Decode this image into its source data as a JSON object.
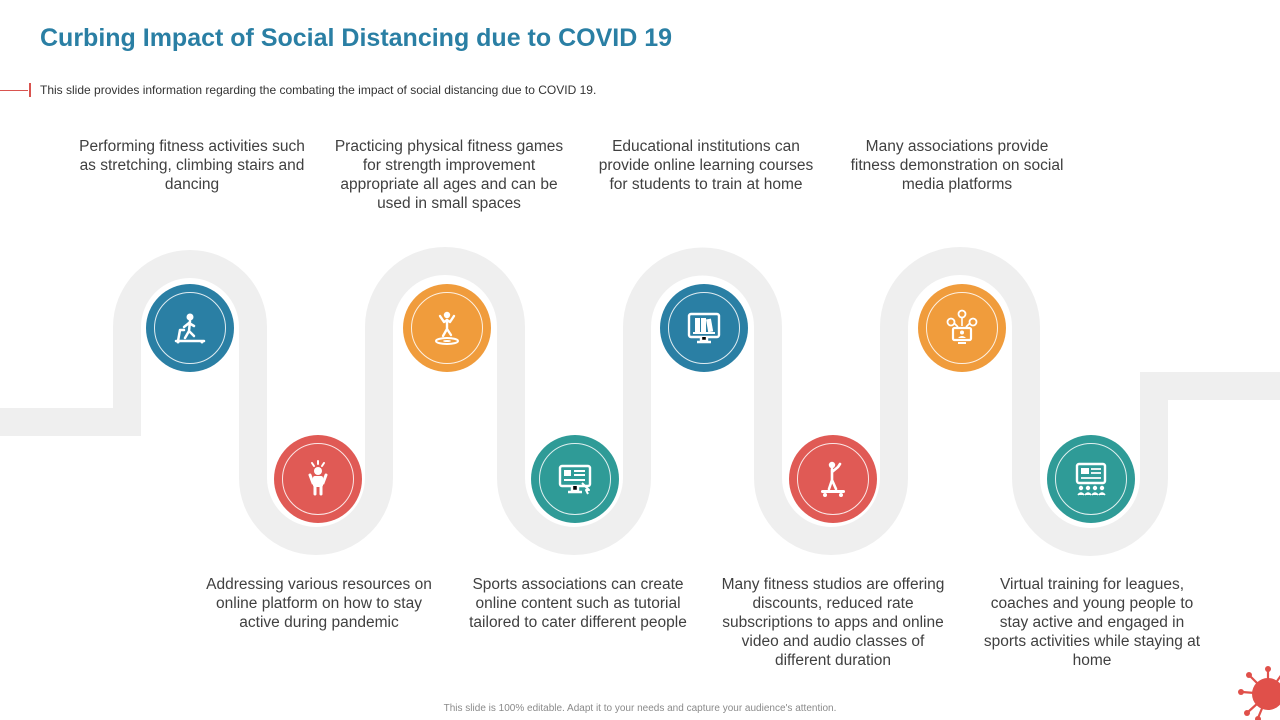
{
  "title": "Curbing Impact of Social Distancing due to COVID 19",
  "subtitle": "This slide provides  information  regarding  the combating the impact of social distancing due to COVID  19.",
  "footer": "This slide is 100% editable.  Adapt it to your needs and capture your audience's attention.",
  "colors": {
    "blue": "#2a7fa4",
    "orange": "#f09c3c",
    "red": "#e05a55",
    "teal": "#2f9b97",
    "path": "#efefef",
    "title": "#2a7fa4"
  },
  "steps": [
    {
      "text": "Performing fitness activities such as stretching, climbing stairs and dancing",
      "icon": "treadmill-icon",
      "color": "blue"
    },
    {
      "text": "Addressing various resources on online platform on how to stay active during pandemic",
      "icon": "child-exercise-icon",
      "color": "red"
    },
    {
      "text": "Practicing physical fitness games for strength improvement appropriate all ages and can be used in small spaces",
      "icon": "trampoline-jump-icon",
      "color": "orange"
    },
    {
      "text": "Sports associations can create online content such as tutorial tailored to cater different people",
      "icon": "online-tutorial-icon",
      "color": "teal"
    },
    {
      "text": "Educational institutions can provide online learning courses for students to train at home",
      "icon": "online-books-icon",
      "color": "blue"
    },
    {
      "text": "Many fitness studios are offering discounts, reduced rate subscriptions to apps and online video and audio classes of different duration",
      "icon": "skateboard-icon",
      "color": "red"
    },
    {
      "text": "Many associations provide fitness demonstration on social media platforms",
      "icon": "social-media-icon",
      "color": "orange"
    },
    {
      "text": "Virtual training for leagues, coaches and young people to stay active and engaged in sports activities while staying at home",
      "icon": "virtual-training-icon",
      "color": "teal"
    }
  ]
}
